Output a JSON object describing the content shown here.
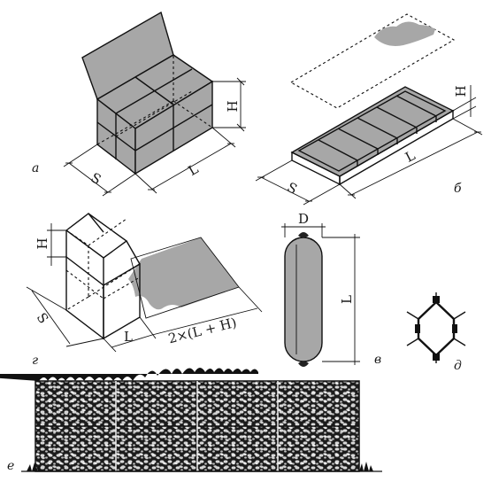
{
  "panels": {
    "a": "а",
    "b": "б",
    "v": "в",
    "g": "г",
    "d": "д",
    "e": "е"
  },
  "dims": {
    "a_H": "H",
    "a_S": "S",
    "a_L": "L",
    "b_H": "H",
    "b_S": "S",
    "b_L": "L",
    "g_H": "H",
    "g_S": "S",
    "g_L": "L",
    "g_total": "2×(L + H)",
    "v_D": "D",
    "v_L": "L"
  },
  "colors": {
    "stone_fill": "#a7a7a7",
    "line": "#111111",
    "wall": "#1b1b1b"
  }
}
